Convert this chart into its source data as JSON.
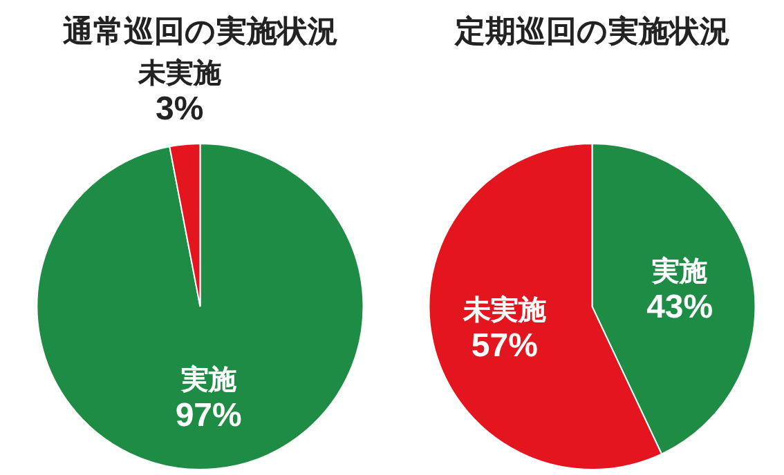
{
  "chart_data": [
    {
      "type": "pie",
      "title": "通常巡回の実施状況",
      "categories": [
        "実施",
        "未実施"
      ],
      "values": [
        97,
        3
      ],
      "colors": [
        "#1e8c45",
        "#e3161f"
      ],
      "value_labels": [
        "97%",
        "3%"
      ]
    },
    {
      "type": "pie",
      "title": "定期巡回の実施状況",
      "categories": [
        "実施",
        "未実施"
      ],
      "values": [
        43,
        57
      ],
      "colors": [
        "#1e8c45",
        "#e3161f"
      ],
      "value_labels": [
        "43%",
        "57%"
      ]
    }
  ]
}
